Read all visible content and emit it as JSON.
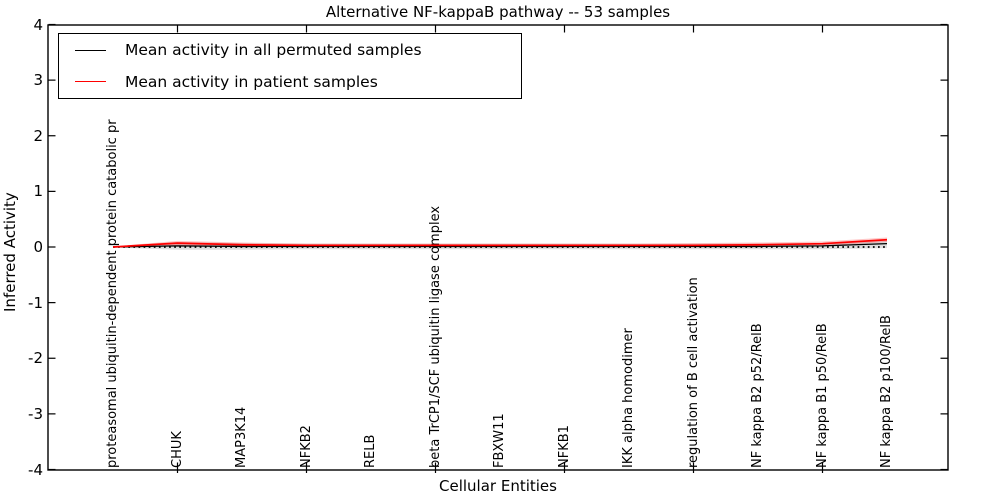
{
  "title": "Alternative NF-kappaB pathway -- 53 samples",
  "legend": {
    "items": [
      {
        "label": "Mean activity in all permuted samples",
        "color": "#000000"
      },
      {
        "label": "Mean activity in patient samples",
        "color": "#ff0000"
      }
    ]
  },
  "chart_data": {
    "type": "line",
    "title": "Alternative NF-kappaB pathway -- 53 samples",
    "xlabel": "Cellular Entities",
    "ylabel": "Inferred Activity",
    "ylim": [
      -4,
      4
    ],
    "yticks": [
      4,
      3,
      2,
      1,
      0,
      -1,
      -2,
      -3,
      -4
    ],
    "ytick_labels": [
      "4",
      "3",
      "2",
      "1",
      "0",
      "-1",
      "-2",
      "-3",
      "-4"
    ],
    "grid": false,
    "legend_position": "upper left",
    "categories": [
      "proteasomal ubiquitin-dependent protein catabolic pr",
      "CHUK",
      "MAP3K14",
      "NFKB2",
      "RELB",
      "beta TrCP1/SCF ubiquitin ligase complex",
      "FBXW11",
      "NFKB1",
      "IKK alpha homodimer",
      "regulation of B cell activation",
      "NF kappa B2 p52/RelB",
      "NF kappa B1 p50/RelB",
      "NF kappa B2 p100/RelB"
    ],
    "series": [
      {
        "name": "Mean activity in all permuted samples",
        "color": "#000000",
        "values": [
          0.0,
          0.02,
          0.01,
          0.01,
          0.01,
          0.01,
          0.01,
          0.01,
          0.01,
          0.01,
          0.01,
          0.02,
          0.06
        ]
      },
      {
        "name": "Mean activity in patient samples",
        "color": "#ff0000",
        "values": [
          0.0,
          0.07,
          0.04,
          0.03,
          0.03,
          0.03,
          0.03,
          0.03,
          0.03,
          0.03,
          0.04,
          0.06,
          0.13
        ]
      }
    ],
    "bands": [
      {
        "name": "permuted-std-band",
        "color": "rgba(0,0,0,0.13)",
        "upper": [
          0.01,
          0.09,
          0.07,
          0.06,
          0.06,
          0.06,
          0.06,
          0.06,
          0.06,
          0.06,
          0.06,
          0.07,
          0.11
        ],
        "lower": [
          -0.01,
          -0.05,
          -0.05,
          -0.04,
          -0.04,
          -0.04,
          -0.04,
          -0.04,
          -0.04,
          -0.04,
          -0.04,
          -0.04,
          -0.02
        ]
      },
      {
        "name": "patient-std-band",
        "color": "rgba(255,0,0,0.22)",
        "upper": [
          0.01,
          0.11,
          0.08,
          0.06,
          0.06,
          0.06,
          0.06,
          0.06,
          0.06,
          0.07,
          0.08,
          0.1,
          0.17
        ],
        "lower": [
          -0.01,
          0.02,
          0.01,
          0.0,
          0.0,
          0.0,
          0.0,
          0.0,
          0.0,
          0.0,
          0.01,
          0.02,
          0.09
        ]
      }
    ],
    "zero_line": {
      "y": 0,
      "style": "dotted",
      "color": "#000000"
    }
  }
}
